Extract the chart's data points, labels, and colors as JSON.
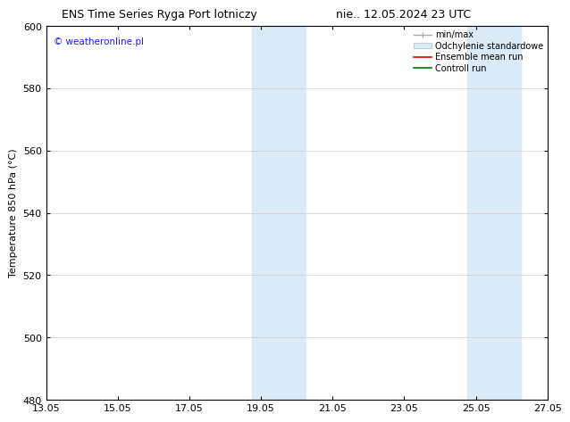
{
  "title_left": "ENS Time Series Ryga Port lotniczy",
  "title_right": "nie.. 12.05.2024 23 UTC",
  "ylabel": "Temperature 850 hPa (°C)",
  "xlabel_ticks": [
    "13.05",
    "15.05",
    "17.05",
    "19.05",
    "21.05",
    "23.05",
    "25.05",
    "27.05"
  ],
  "x_positions": [
    0,
    2,
    4,
    6,
    8,
    10,
    12,
    14
  ],
  "yticks": [
    480,
    500,
    520,
    540,
    560,
    580,
    600
  ],
  "ylim": [
    480,
    600
  ],
  "xlim": [
    0,
    14
  ],
  "background_color": "#ffffff",
  "plot_bg_color": "#ffffff",
  "watermark_text": "© weatheronline.pl",
  "watermark_color": "#1a1aff",
  "shaded_regions": [
    {
      "xmin": 5.75,
      "xmax": 7.25,
      "color": "#daeaf7"
    },
    {
      "xmin": 11.75,
      "xmax": 13.25,
      "color": "#daeaf7"
    }
  ],
  "grid_color": "#cccccc",
  "spine_color": "#000000",
  "title_fontsize": 9,
  "tick_fontsize": 8,
  "ylabel_fontsize": 8,
  "watermark_fontsize": 7.5,
  "legend_fontsize": 7
}
